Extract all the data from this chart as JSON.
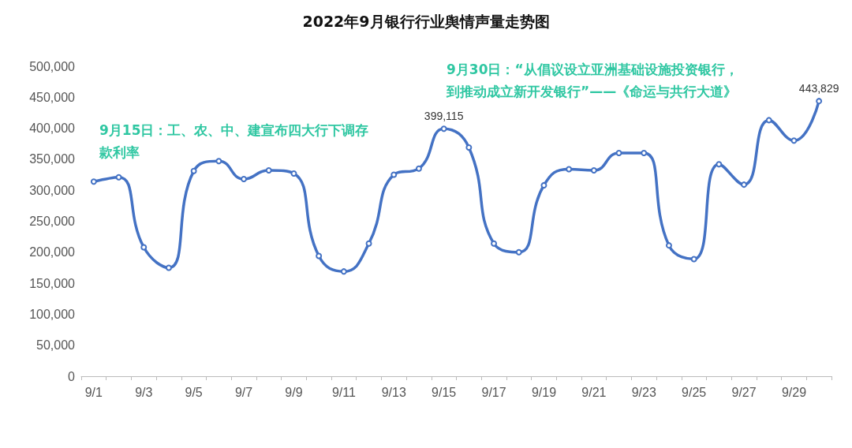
{
  "chart_data": {
    "type": "line",
    "title": "2022年9月银行行业舆情声量走势图",
    "categories": [
      "9/1",
      null,
      "9/3",
      null,
      "9/5",
      null,
      "9/7",
      null,
      "9/9",
      null,
      "9/11",
      null,
      "9/13",
      null,
      "9/15",
      null,
      "9/17",
      null,
      "9/19",
      null,
      "9/21",
      null,
      "9/23",
      null,
      "9/25",
      null,
      "9/27",
      null,
      "9/29",
      null
    ],
    "series": [
      {
        "color": "#4472c4",
        "values": [
          314000,
          321000,
          208000,
          175000,
          331000,
          347000,
          318000,
          332000,
          327000,
          194000,
          169000,
          214000,
          325000,
          335000,
          399115,
          369000,
          214000,
          200000,
          308000,
          334000,
          332000,
          360000,
          360000,
          211000,
          189000,
          342000,
          309000,
          413000,
          380000,
          443829
        ],
        "value_labels": [
          null,
          null,
          null,
          null,
          null,
          null,
          null,
          null,
          null,
          null,
          null,
          null,
          null,
          null,
          "399,115",
          null,
          null,
          null,
          null,
          null,
          null,
          null,
          null,
          null,
          null,
          null,
          null,
          null,
          null,
          "443,829"
        ]
      }
    ],
    "ylim": [
      0,
      500000
    ],
    "yticks": [
      0,
      {
        "value": 50000,
        "label": "50,000"
      },
      {
        "value": 100000,
        "label": "100,000"
      },
      {
        "value": 150000,
        "label": "150,000"
      },
      {
        "value": 200000,
        "label": "200,000"
      },
      {
        "value": 250000,
        "label": "250,000"
      },
      {
        "value": 300000,
        "label": "300,000"
      },
      {
        "value": 350000,
        "label": "350,000"
      },
      {
        "value": 400000,
        "label": "400,000"
      },
      {
        "value": 450000,
        "label": "450,000"
      },
      {
        "value": 500000,
        "label": "500,000"
      }
    ],
    "annotations": [
      "9月15日：工、农、中、建宣布四大行下调存款利率",
      "9月30日：“从倡议设立亚洲基础设施投资银行，到推动成立新开发银行”——《命运与共行大道》"
    ],
    "grid": false,
    "legend": false,
    "marker": "circle",
    "line_style": "solid"
  }
}
